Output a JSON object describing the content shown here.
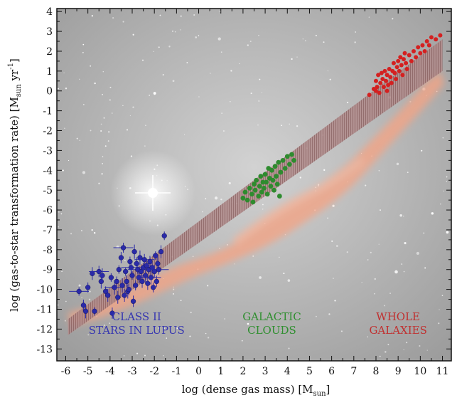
{
  "chart_data": {
    "type": "scatter",
    "title": "",
    "xlabel": "log (dense gas mass) [M",
    "xlabel_sub": "sun",
    "xlabel_end": "]",
    "ylabel": "log (gas-to-star transformation rate) [M",
    "ylabel_sub": "sun",
    "ylabel_mid": " yr",
    "ylabel_sup": "-1",
    "ylabel_end": "]",
    "xlim": [
      -6.4,
      11.4
    ],
    "ylim": [
      -13.6,
      4.15
    ],
    "x_ticks": [
      -6,
      -5,
      -4,
      -3,
      -2,
      -1,
      0,
      1,
      2,
      3,
      4,
      5,
      6,
      7,
      8,
      9,
      10,
      11
    ],
    "y_ticks": [
      4,
      3,
      2,
      1,
      0,
      -1,
      -2,
      -3,
      -4,
      -5,
      -6,
      -7,
      -8,
      -9,
      -10,
      -11,
      -12,
      -13
    ],
    "grid": false,
    "trend_band": {
      "low_start": [
        -5.9,
        -12.3
      ],
      "low_end": [
        11.0,
        1.0
      ],
      "high_start": [
        -5.9,
        -11.5
      ],
      "high_end": [
        11.0,
        2.6
      ]
    },
    "annotations": [
      {
        "lines": [
          "CLASS II",
          "STARS IN LUPUS"
        ],
        "x": -2.8,
        "y": -11.8,
        "color": "#3535b0"
      },
      {
        "lines": [
          "GALACTIC",
          "CLOUDS"
        ],
        "x": 3.3,
        "y": -11.8,
        "color": "#2f8f2f"
      },
      {
        "lines": [
          "WHOLE",
          "GALAXIES"
        ],
        "x": 9.0,
        "y": -11.8,
        "color": "#c03030"
      }
    ],
    "series": [
      {
        "color": "#2a2aa8",
        "points": [
          [
            -5.4,
            -10.1
          ],
          [
            -5.2,
            -10.8
          ],
          [
            -5.1,
            -11.1
          ],
          [
            -5.0,
            -9.9
          ],
          [
            -4.8,
            -9.2
          ],
          [
            -4.7,
            -11.1
          ],
          [
            -4.5,
            -9.1
          ],
          [
            -4.4,
            -9.6
          ],
          [
            -4.2,
            -10.1
          ],
          [
            -4.1,
            -10.3
          ],
          [
            -3.95,
            -9.4
          ],
          [
            -3.9,
            -11.2
          ],
          [
            -3.8,
            -9.9
          ],
          [
            -3.7,
            -9.6
          ],
          [
            -3.65,
            -10.4
          ],
          [
            -3.6,
            -9.0
          ],
          [
            -3.5,
            -8.4
          ],
          [
            -3.45,
            -9.8
          ],
          [
            -3.4,
            -7.9
          ],
          [
            -3.35,
            -10.3
          ],
          [
            -3.3,
            -9.1
          ],
          [
            -3.25,
            -9.6
          ],
          [
            -3.2,
            -10.1
          ],
          [
            -3.1,
            -8.6
          ],
          [
            -3.05,
            -8.9
          ],
          [
            -3.0,
            -9.3
          ],
          [
            -2.95,
            -10.6
          ],
          [
            -2.9,
            -8.1
          ],
          [
            -2.85,
            -9.8
          ],
          [
            -2.8,
            -8.7
          ],
          [
            -2.75,
            -9.0
          ],
          [
            -2.7,
            -9.4
          ],
          [
            -2.65,
            -8.4
          ],
          [
            -2.6,
            -9.1
          ],
          [
            -2.55,
            -9.6
          ],
          [
            -2.5,
            -8.9
          ],
          [
            -2.45,
            -8.5
          ],
          [
            -2.4,
            -9.3
          ],
          [
            -2.35,
            -8.8
          ],
          [
            -2.3,
            -9.7
          ],
          [
            -2.25,
            -9.0
          ],
          [
            -2.2,
            -8.6
          ],
          [
            -2.15,
            -9.4
          ],
          [
            -2.1,
            -8.9
          ],
          [
            -2.0,
            -9.1
          ],
          [
            -1.95,
            -8.3
          ],
          [
            -1.9,
            -9.6
          ],
          [
            -1.85,
            -8.7
          ],
          [
            -1.8,
            -9.0
          ],
          [
            -1.7,
            -8.1
          ],
          [
            -1.55,
            -7.3
          ],
          [
            -3.15,
            -10.0
          ],
          [
            -4.35,
            -9.3
          ],
          [
            -2.05,
            -9.9
          ]
        ]
      },
      {
        "color": "#2e8b2e",
        "points": [
          [
            2.0,
            -5.4
          ],
          [
            2.1,
            -5.1
          ],
          [
            2.2,
            -5.5
          ],
          [
            2.3,
            -4.9
          ],
          [
            2.4,
            -5.2
          ],
          [
            2.5,
            -4.7
          ],
          [
            2.55,
            -5.0
          ],
          [
            2.6,
            -4.5
          ],
          [
            2.7,
            -5.3
          ],
          [
            2.75,
            -4.8
          ],
          [
            2.8,
            -4.3
          ],
          [
            2.85,
            -5.1
          ],
          [
            2.9,
            -4.6
          ],
          [
            2.95,
            -4.9
          ],
          [
            3.0,
            -4.2
          ],
          [
            3.05,
            -4.6
          ],
          [
            3.1,
            -5.2
          ],
          [
            3.15,
            -3.9
          ],
          [
            3.2,
            -4.4
          ],
          [
            3.25,
            -4.8
          ],
          [
            3.3,
            -4.0
          ],
          [
            3.35,
            -4.5
          ],
          [
            3.4,
            -5.0
          ],
          [
            3.45,
            -3.8
          ],
          [
            3.5,
            -4.3
          ],
          [
            3.55,
            -4.7
          ],
          [
            3.6,
            -3.6
          ],
          [
            3.7,
            -4.1
          ],
          [
            3.8,
            -3.5
          ],
          [
            3.9,
            -3.9
          ],
          [
            4.0,
            -3.3
          ],
          [
            4.1,
            -3.7
          ],
          [
            4.2,
            -3.2
          ],
          [
            4.3,
            -3.5
          ],
          [
            2.45,
            -5.6
          ],
          [
            3.65,
            -5.3
          ]
        ]
      },
      {
        "color": "#d42020",
        "points": [
          [
            7.7,
            -0.2
          ],
          [
            7.9,
            0.1
          ],
          [
            8.0,
            0.5
          ],
          [
            8.05,
            0.2
          ],
          [
            8.1,
            0.8
          ],
          [
            8.15,
            -0.1
          ],
          [
            8.2,
            0.4
          ],
          [
            8.25,
            0.9
          ],
          [
            8.3,
            0.6
          ],
          [
            8.35,
            0.2
          ],
          [
            8.4,
            1.0
          ],
          [
            8.45,
            0.5
          ],
          [
            8.5,
            0.8
          ],
          [
            8.55,
            0.3
          ],
          [
            8.6,
            1.1
          ],
          [
            8.65,
            0.7
          ],
          [
            8.7,
            0.4
          ],
          [
            8.75,
            1.0
          ],
          [
            8.8,
            1.4
          ],
          [
            8.85,
            0.9
          ],
          [
            8.9,
            0.6
          ],
          [
            8.95,
            1.2
          ],
          [
            9.0,
            1.5
          ],
          [
            9.05,
            1.0
          ],
          [
            9.1,
            1.7
          ],
          [
            9.15,
            1.3
          ],
          [
            9.2,
            0.8
          ],
          [
            9.25,
            1.6
          ],
          [
            9.3,
            1.9
          ],
          [
            9.35,
            1.4
          ],
          [
            9.4,
            1.1
          ],
          [
            9.5,
            1.8
          ],
          [
            9.6,
            1.5
          ],
          [
            9.7,
            2.0
          ],
          [
            9.8,
            1.7
          ],
          [
            9.9,
            2.2
          ],
          [
            10.0,
            1.9
          ],
          [
            10.1,
            2.3
          ],
          [
            10.2,
            2.0
          ],
          [
            10.3,
            2.5
          ],
          [
            10.4,
            2.3
          ],
          [
            10.5,
            2.7
          ],
          [
            10.7,
            2.6
          ],
          [
            10.9,
            2.8
          ],
          [
            8.0,
            0.0
          ],
          [
            8.5,
            0.0
          ]
        ]
      }
    ]
  }
}
